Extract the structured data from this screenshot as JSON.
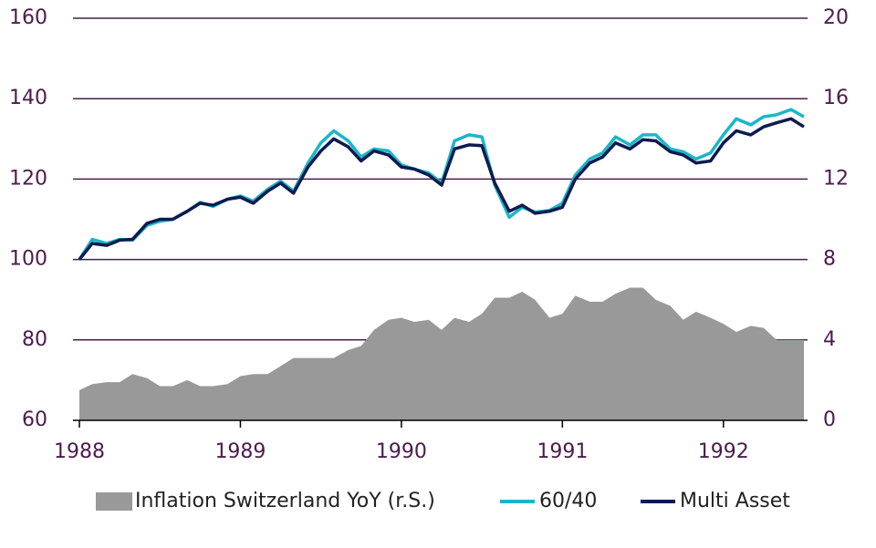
{
  "chart_data": {
    "type": "line",
    "x": [
      1988,
      1988.08,
      1988.17,
      1988.25,
      1988.33,
      1988.42,
      1988.5,
      1988.58,
      1988.67,
      1988.75,
      1988.83,
      1988.92,
      1989,
      1989.08,
      1989.17,
      1989.25,
      1989.33,
      1989.42,
      1989.5,
      1989.58,
      1989.67,
      1989.75,
      1989.83,
      1989.92,
      1990,
      1990.08,
      1990.17,
      1990.25,
      1990.33,
      1990.42,
      1990.5,
      1990.58,
      1990.67,
      1990.75,
      1990.83,
      1990.92,
      1991,
      1991.08,
      1991.17,
      1991.25,
      1991.33,
      1991.42,
      1991.5,
      1991.58,
      1991.67,
      1991.75,
      1991.83,
      1991.92,
      1992,
      1992.08,
      1992.17,
      1992.25,
      1992.33,
      1992.42,
      1992.5
    ],
    "series": [
      {
        "name": "Inflation Switzerland YoY (r.S.)",
        "type": "area",
        "axis": "y2",
        "color": "#999999",
        "values": [
          1.5,
          1.8,
          1.9,
          1.9,
          2.3,
          2.1,
          1.7,
          1.7,
          2.0,
          1.7,
          1.7,
          1.8,
          2.2,
          2.3,
          2.3,
          2.7,
          3.1,
          3.1,
          3.1,
          3.1,
          3.5,
          3.7,
          4.5,
          5.0,
          5.1,
          4.9,
          5.0,
          4.5,
          5.1,
          4.9,
          5.3,
          6.1,
          6.1,
          6.4,
          6.0,
          5.1,
          5.3,
          6.2,
          5.9,
          5.9,
          6.3,
          6.6,
          6.6,
          6.0,
          5.7,
          5.0,
          5.4,
          5.1,
          4.8,
          4.4,
          4.7,
          4.6,
          4.0,
          4.0,
          4.0
        ]
      },
      {
        "name": "60/40",
        "type": "line",
        "color": "#1bb6c9",
        "values": [
          100,
          105,
          104,
          105,
          104.8,
          108.5,
          109.5,
          110,
          112,
          114.2,
          113.2,
          115,
          115.8,
          114.5,
          117.5,
          119.5,
          117,
          124,
          129,
          132,
          129.5,
          125.5,
          127.5,
          127,
          123.5,
          122.5,
          121.5,
          119,
          129.5,
          131,
          130.5,
          118.5,
          110.5,
          113,
          111.8,
          112.2,
          114,
          121,
          125,
          126.5,
          130.5,
          128.5,
          131,
          131,
          127.5,
          126.8,
          125,
          126.5,
          131,
          135,
          133.5,
          135.5,
          136,
          137.3,
          135.5
        ]
      },
      {
        "name": "Multi Asset",
        "type": "line",
        "color": "#0d1b4f",
        "values": [
          100,
          104,
          103.5,
          104.8,
          105,
          109,
          110,
          110,
          112,
          114,
          113.5,
          115,
          115.5,
          114,
          117,
          119,
          116.5,
          123,
          127,
          130,
          128,
          124.5,
          127,
          126,
          123,
          122.5,
          121,
          118.5,
          127.5,
          128.5,
          128.3,
          119,
          112,
          113.5,
          111.5,
          112,
          113,
          120,
          124,
          125.5,
          129,
          127.5,
          129.8,
          129.5,
          126.8,
          126,
          124,
          124.5,
          129,
          132,
          131,
          133,
          134,
          135,
          133
        ]
      }
    ],
    "xlim": [
      1988,
      1992.5
    ],
    "xticks": [
      1988,
      1989,
      1990,
      1991,
      1992
    ],
    "ylim": [
      60,
      160
    ],
    "yticks": [
      60,
      80,
      100,
      120,
      140,
      160
    ],
    "y2lim": [
      0,
      20
    ],
    "y2ticks": [
      0,
      4,
      8,
      12,
      16,
      20
    ],
    "grid": true,
    "legend": "bottom"
  }
}
